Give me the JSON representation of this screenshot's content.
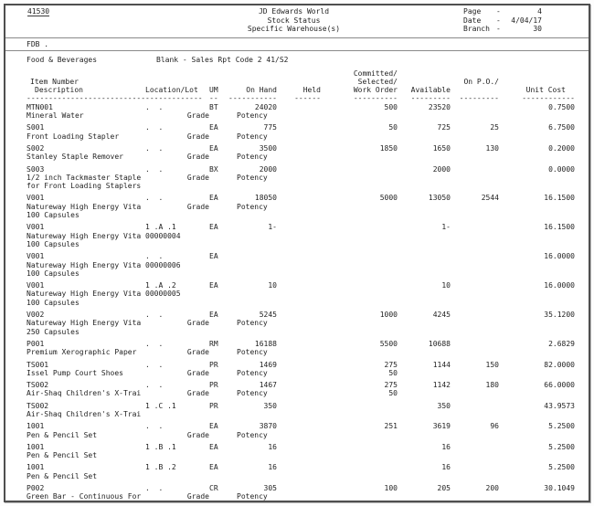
{
  "header": {
    "report_id": "41530",
    "center": [
      "JD Edwards World",
      "Stock Status",
      "Specific Warehouse(s)"
    ],
    "meta": [
      {
        "label": "Page",
        "sep": "-",
        "value": "4"
      },
      {
        "label": "Date",
        "sep": "-",
        "value": "4/04/17"
      },
      {
        "label": "Branch",
        "sep": "-",
        "value": "30"
      }
    ]
  },
  "filters": {
    "code": "FDB .",
    "category": "Food & Beverages",
    "sales_rpt": "Blank - Sales Rpt Code 2 41/S2"
  },
  "table": {
    "columns": {
      "item_number": "Item Number",
      "description": "Description",
      "location_lot": "Location/Lot",
      "um": "UM",
      "on_hand": "On Hand",
      "held": "Held",
      "committed": "Committed/",
      "selected": "Selected/",
      "work_order": "Work Order",
      "available": "Available",
      "on_po": "On P.O./",
      "unit_cost": "Unit Cost"
    },
    "dashes": {
      "d1": "---------------------------",
      "d2": "-------------",
      "d3": "--",
      "d4": "-----------",
      "d5": "------",
      "d6": "----------",
      "d7": "---------",
      "d8": "---------",
      "d9": "------------"
    },
    "rows": [
      {
        "item": "MTN001",
        "loc": ".  .",
        "um": "BT",
        "on_hand": "24020",
        "held": "",
        "committed": "500",
        "available": "23520",
        "on_po": "",
        "unit_cost": "0.7500",
        "desc": "Mineral Water",
        "lot": "",
        "grade": "Grade",
        "potency": "Potency",
        "committed2": "",
        "desc2": ""
      },
      {
        "item": "S001",
        "loc": ".  .",
        "um": "EA",
        "on_hand": "775",
        "held": "",
        "committed": "50",
        "available": "725",
        "on_po": "25",
        "unit_cost": "6.7500",
        "desc": "Front Loading Stapler",
        "lot": "",
        "grade": "Grade",
        "potency": "Potency",
        "committed2": "",
        "desc2": ""
      },
      {
        "item": "S002",
        "loc": ".  .",
        "um": "EA",
        "on_hand": "3500",
        "held": "",
        "committed": "1850",
        "available": "1650",
        "on_po": "130",
        "unit_cost": "0.2000",
        "desc": "Stanley Staple Remover",
        "lot": "",
        "grade": "Grade",
        "potency": "Potency",
        "committed2": "",
        "desc2": ""
      },
      {
        "item": "S003",
        "loc": ".  .",
        "um": "BX",
        "on_hand": "2000",
        "held": "",
        "committed": "",
        "available": "2000",
        "on_po": "",
        "unit_cost": "0.0000",
        "desc": "1/2 inch Tackmaster Staple",
        "lot": "",
        "grade": "Grade",
        "potency": "Potency",
        "committed2": "",
        "desc2": "for Front Loading Staplers"
      },
      {
        "item": "V001",
        "loc": ".  .",
        "um": "EA",
        "on_hand": "18050",
        "held": "",
        "committed": "5000",
        "available": "13050",
        "on_po": "2544",
        "unit_cost": "16.1500",
        "desc": "Natureway High Energy Vita",
        "lot": "",
        "grade": "Grade",
        "potency": "Potency",
        "committed2": "",
        "desc2": "100 Capsules"
      },
      {
        "item": "V001",
        "loc": "1 .A .1",
        "um": "EA",
        "on_hand": "1-",
        "held": "",
        "committed": "",
        "available": "1-",
        "on_po": "",
        "unit_cost": "16.1500",
        "desc": "Natureway High Energy Vita",
        "lot": "00000004",
        "grade": "",
        "potency": "",
        "committed2": "",
        "desc2": "100 Capsules"
      },
      {
        "item": "V001",
        "loc": ".  .",
        "um": "EA",
        "on_hand": "",
        "held": "",
        "committed": "",
        "available": "",
        "on_po": "",
        "unit_cost": "16.0000",
        "desc": "Natureway High Energy Vita",
        "lot": "00000006",
        "grade": "",
        "potency": "",
        "committed2": "",
        "desc2": "100 Capsules"
      },
      {
        "item": "V001",
        "loc": "1 .A .2",
        "um": "EA",
        "on_hand": "10",
        "held": "",
        "committed": "",
        "available": "10",
        "on_po": "",
        "unit_cost": "16.0000",
        "desc": "Natureway High Energy Vita",
        "lot": "00000005",
        "grade": "",
        "potency": "",
        "committed2": "",
        "desc2": "100 Capsules"
      },
      {
        "item": "V002",
        "loc": ".  .",
        "um": "EA",
        "on_hand": "5245",
        "held": "",
        "committed": "1000",
        "available": "4245",
        "on_po": "",
        "unit_cost": "35.1200",
        "desc": "Natureway High Energy Vita",
        "lot": "",
        "grade": "Grade",
        "potency": "Potency",
        "committed2": "",
        "desc2": "250 Capsules"
      },
      {
        "item": "P001",
        "loc": ".  .",
        "um": "RM",
        "on_hand": "16188",
        "held": "",
        "committed": "5500",
        "available": "10688",
        "on_po": "",
        "unit_cost": "2.6829",
        "desc": "Premium Xerographic Paper",
        "lot": "",
        "grade": "Grade",
        "potency": "Potency",
        "committed2": "",
        "desc2": ""
      },
      {
        "item": "TS001",
        "loc": ".  .",
        "um": "PR",
        "on_hand": "1469",
        "held": "",
        "committed": "275",
        "available": "1144",
        "on_po": "150",
        "unit_cost": "82.0000",
        "desc": "Issel Pump Court Shoes",
        "lot": "",
        "grade": "Grade",
        "potency": "Potency",
        "committed2": "50",
        "desc2": ""
      },
      {
        "item": "TS002",
        "loc": ".  .",
        "um": "PR",
        "on_hand": "1467",
        "held": "",
        "committed": "275",
        "available": "1142",
        "on_po": "180",
        "unit_cost": "66.0000",
        "desc": "Air-Shaq Children's X-Trai",
        "lot": "",
        "grade": "Grade",
        "potency": "Potency",
        "committed2": "50",
        "desc2": ""
      },
      {
        "item": "TS002",
        "loc": "1 .C .1",
        "um": "PR",
        "on_hand": "350",
        "held": "",
        "committed": "",
        "available": "350",
        "on_po": "",
        "unit_cost": "43.9573",
        "desc": "Air-Shaq Children's X-Trai",
        "lot": "",
        "grade": "",
        "potency": "",
        "committed2": "",
        "desc2": ""
      },
      {
        "item": "1001",
        "loc": ".  .",
        "um": "EA",
        "on_hand": "3870",
        "held": "",
        "committed": "251",
        "available": "3619",
        "on_po": "96",
        "unit_cost": "5.2500",
        "desc": "Pen & Pencil Set",
        "lot": "",
        "grade": "Grade",
        "potency": "Potency",
        "committed2": "",
        "desc2": ""
      },
      {
        "item": "1001",
        "loc": "1 .B .1",
        "um": "EA",
        "on_hand": "16",
        "held": "",
        "committed": "",
        "available": "16",
        "on_po": "",
        "unit_cost": "5.2500",
        "desc": "Pen & Pencil Set",
        "lot": "",
        "grade": "",
        "potency": "",
        "committed2": "",
        "desc2": ""
      },
      {
        "item": "1001",
        "loc": "1 .B .2",
        "um": "EA",
        "on_hand": "16",
        "held": "",
        "committed": "",
        "available": "16",
        "on_po": "",
        "unit_cost": "5.2500",
        "desc": "Pen & Pencil Set",
        "lot": "",
        "grade": "",
        "potency": "",
        "committed2": "",
        "desc2": ""
      },
      {
        "item": "P002",
        "loc": ".  .",
        "um": "CR",
        "on_hand": "305",
        "held": "",
        "committed": "100",
        "available": "205",
        "on_po": "200",
        "unit_cost": "30.1049",
        "desc": "Green Bar - Continuous For",
        "lot": "",
        "grade": "Grade",
        "potency": "Potency",
        "committed2": "",
        "desc2": ""
      }
    ]
  }
}
